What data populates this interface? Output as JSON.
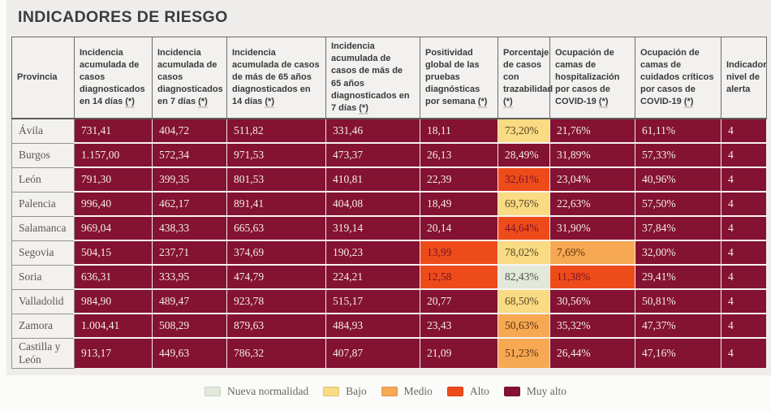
{
  "chart_data": {
    "type": "table",
    "title": "INDICADORES DE RIESGO",
    "columns": [
      {
        "label": "Provincia",
        "footnote": ""
      },
      {
        "label": "Incidencia acumulada de casos diagnosticados en 14 días",
        "footnote": "(*)"
      },
      {
        "label": "Incidencia acumulada de casos diagnosticados en 7 días",
        "footnote": "(*)"
      },
      {
        "label": "Incidencia acumulada de casos de más de 65 años diagnosticados en 14 días",
        "footnote": "(*)"
      },
      {
        "label": "Incidencia acumulada de casos de más de 65 años diagnosticados en 7 días",
        "footnote": "(*)"
      },
      {
        "label": "Positividad global de las pruebas diagnósticas por semana",
        "footnote": "(*)"
      },
      {
        "label": "Porcentaje de casos con trazabilidad",
        "footnote": "(*)"
      },
      {
        "label": "Ocupación de camas de hospitalización por casos de COVID-19",
        "footnote": "(*)"
      },
      {
        "label": "Ocupación de camas de cuidados críticos por casos de COVID-19",
        "footnote": "(*)"
      },
      {
        "label": "Indicador nivel de alerta",
        "footnote": ""
      }
    ],
    "rows": [
      {
        "province": "Ávila",
        "cells": [
          {
            "v": "731,41",
            "level": "muy-alto"
          },
          {
            "v": "404,72",
            "level": "muy-alto"
          },
          {
            "v": "511,82",
            "level": "muy-alto"
          },
          {
            "v": "331,46",
            "level": "muy-alto"
          },
          {
            "v": "18,11",
            "level": "muy-alto"
          },
          {
            "v": "73,20%",
            "level": "bajo"
          },
          {
            "v": "21,76%",
            "level": "muy-alto"
          },
          {
            "v": "61,11%",
            "level": "muy-alto"
          },
          {
            "v": "4",
            "level": "muy-alto"
          }
        ]
      },
      {
        "province": "Burgos",
        "cells": [
          {
            "v": "1.157,00",
            "level": "muy-alto"
          },
          {
            "v": "572,34",
            "level": "muy-alto"
          },
          {
            "v": "971,53",
            "level": "muy-alto"
          },
          {
            "v": "473,37",
            "level": "muy-alto"
          },
          {
            "v": "26,13",
            "level": "muy-alto"
          },
          {
            "v": "28,49%",
            "level": "muy-alto"
          },
          {
            "v": "31,89%",
            "level": "muy-alto"
          },
          {
            "v": "57,33%",
            "level": "muy-alto"
          },
          {
            "v": "4",
            "level": "muy-alto"
          }
        ]
      },
      {
        "province": "León",
        "cells": [
          {
            "v": "791,30",
            "level": "muy-alto"
          },
          {
            "v": "399,35",
            "level": "muy-alto"
          },
          {
            "v": "801,53",
            "level": "muy-alto"
          },
          {
            "v": "410,81",
            "level": "muy-alto"
          },
          {
            "v": "22,39",
            "level": "muy-alto"
          },
          {
            "v": "32,61%",
            "level": "alto"
          },
          {
            "v": "23,04%",
            "level": "muy-alto"
          },
          {
            "v": "40,96%",
            "level": "muy-alto"
          },
          {
            "v": "4",
            "level": "muy-alto"
          }
        ]
      },
      {
        "province": "Palencia",
        "cells": [
          {
            "v": "996,40",
            "level": "muy-alto"
          },
          {
            "v": "462,17",
            "level": "muy-alto"
          },
          {
            "v": "891,41",
            "level": "muy-alto"
          },
          {
            "v": "404,08",
            "level": "muy-alto"
          },
          {
            "v": "18,49",
            "level": "muy-alto"
          },
          {
            "v": "69,76%",
            "level": "bajo"
          },
          {
            "v": "22,63%",
            "level": "muy-alto"
          },
          {
            "v": "57,50%",
            "level": "muy-alto"
          },
          {
            "v": "4",
            "level": "muy-alto"
          }
        ]
      },
      {
        "province": "Salamanca",
        "cells": [
          {
            "v": "969,04",
            "level": "muy-alto"
          },
          {
            "v": "438,33",
            "level": "muy-alto"
          },
          {
            "v": "665,63",
            "level": "muy-alto"
          },
          {
            "v": "319,14",
            "level": "muy-alto"
          },
          {
            "v": "20,14",
            "level": "muy-alto"
          },
          {
            "v": "44,64%",
            "level": "alto"
          },
          {
            "v": "31,90%",
            "level": "muy-alto"
          },
          {
            "v": "37,84%",
            "level": "muy-alto"
          },
          {
            "v": "4",
            "level": "muy-alto"
          }
        ]
      },
      {
        "province": "Segovia",
        "cells": [
          {
            "v": "504,15",
            "level": "muy-alto"
          },
          {
            "v": "237,71",
            "level": "muy-alto"
          },
          {
            "v": "374,69",
            "level": "muy-alto"
          },
          {
            "v": "190,23",
            "level": "muy-alto"
          },
          {
            "v": "13,99",
            "level": "alto"
          },
          {
            "v": "78,02%",
            "level": "bajo"
          },
          {
            "v": "7,69%",
            "level": "medio"
          },
          {
            "v": "32,00%",
            "level": "muy-alto"
          },
          {
            "v": "4",
            "level": "muy-alto"
          }
        ]
      },
      {
        "province": "Soria",
        "cells": [
          {
            "v": "636,31",
            "level": "muy-alto"
          },
          {
            "v": "333,95",
            "level": "muy-alto"
          },
          {
            "v": "474,79",
            "level": "muy-alto"
          },
          {
            "v": "224,21",
            "level": "muy-alto"
          },
          {
            "v": "12,58",
            "level": "alto"
          },
          {
            "v": "82,43%",
            "level": "nueva-normalidad"
          },
          {
            "v": "11,38%",
            "level": "alto"
          },
          {
            "v": "29,41%",
            "level": "muy-alto"
          },
          {
            "v": "4",
            "level": "muy-alto"
          }
        ]
      },
      {
        "province": "Valladolid",
        "cells": [
          {
            "v": "984,90",
            "level": "muy-alto"
          },
          {
            "v": "489,47",
            "level": "muy-alto"
          },
          {
            "v": "923,78",
            "level": "muy-alto"
          },
          {
            "v": "515,17",
            "level": "muy-alto"
          },
          {
            "v": "20,77",
            "level": "muy-alto"
          },
          {
            "v": "68,50%",
            "level": "bajo"
          },
          {
            "v": "30,56%",
            "level": "muy-alto"
          },
          {
            "v": "50,81%",
            "level": "muy-alto"
          },
          {
            "v": "4",
            "level": "muy-alto"
          }
        ]
      },
      {
        "province": "Zamora",
        "cells": [
          {
            "v": "1.004,41",
            "level": "muy-alto"
          },
          {
            "v": "508,29",
            "level": "muy-alto"
          },
          {
            "v": "879,63",
            "level": "muy-alto"
          },
          {
            "v": "484,93",
            "level": "muy-alto"
          },
          {
            "v": "23,43",
            "level": "muy-alto"
          },
          {
            "v": "50,63%",
            "level": "medio"
          },
          {
            "v": "35,32%",
            "level": "muy-alto"
          },
          {
            "v": "47,37%",
            "level": "muy-alto"
          },
          {
            "v": "4",
            "level": "muy-alto"
          }
        ]
      },
      {
        "province": "Castilla y León",
        "cells": [
          {
            "v": "913,17",
            "level": "muy-alto"
          },
          {
            "v": "449,63",
            "level": "muy-alto"
          },
          {
            "v": "786,32",
            "level": "muy-alto"
          },
          {
            "v": "407,87",
            "level": "muy-alto"
          },
          {
            "v": "21,09",
            "level": "muy-alto"
          },
          {
            "v": "51,23%",
            "level": "medio"
          },
          {
            "v": "26,44%",
            "level": "muy-alto"
          },
          {
            "v": "47,16%",
            "level": "muy-alto"
          },
          {
            "v": "4",
            "level": "muy-alto"
          }
        ]
      }
    ],
    "level_colors": {
      "nueva-normalidad": {
        "bg": "#e2e9db",
        "text": "#4a5447"
      },
      "bajo": {
        "bg": "#f8db82",
        "text": "#5a4526"
      },
      "medio": {
        "bg": "#f6a853",
        "text": "#5e3310"
      },
      "alto": {
        "bg": "#ee4b1b",
        "text": "#7a1028"
      },
      "muy-alto": {
        "bg": "#831233",
        "text": "#f5ede7"
      }
    },
    "legend": [
      {
        "label": "Nueva normalidad",
        "level": "nueva-normalidad"
      },
      {
        "label": "Bajo",
        "level": "bajo"
      },
      {
        "label": "Medio",
        "level": "medio"
      },
      {
        "label": "Alto",
        "level": "alto"
      },
      {
        "label": "Muy alto",
        "level": "muy-alto"
      }
    ]
  }
}
